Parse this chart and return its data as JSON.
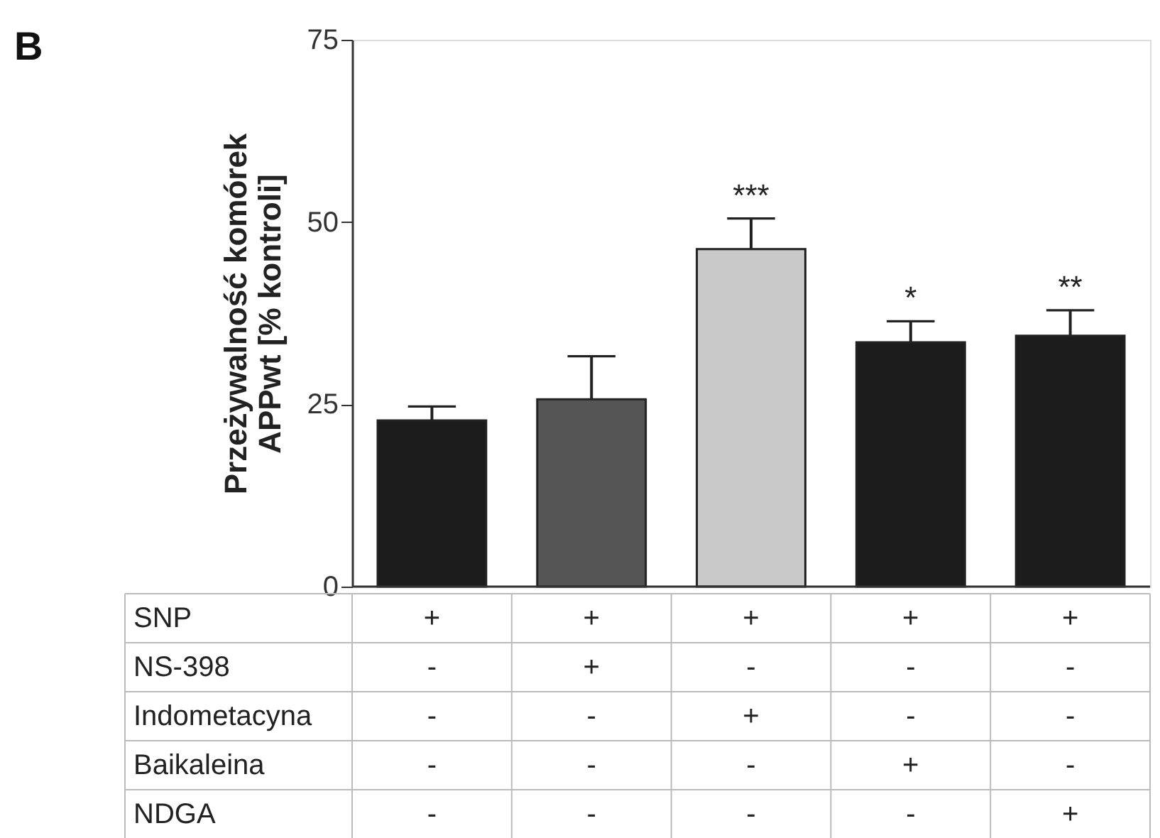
{
  "chart_data": {
    "type": "bar",
    "title": "B",
    "ylabel": "Przeżywalność komórek\nAPPwt [% kontroli]",
    "categories": [
      null,
      null,
      null,
      null,
      null
    ],
    "values": [
      22.8,
      25.7,
      46.3,
      33.5,
      34.4
    ],
    "colors": [
      "#1c1c1c",
      "#555555",
      "#c9c9c9",
      "#1c1c1c",
      "#1c1c1c"
    ],
    "errors": [
      [
        22.8,
        24.7
      ],
      [
        25.7,
        31.6
      ],
      [
        46.3,
        50.5
      ],
      [
        33.5,
        36.4
      ],
      [
        34.4,
        37.9
      ]
    ],
    "value_labels": [
      null,
      null,
      "***",
      "*",
      "**"
    ],
    "ylim": [
      0,
      75
    ],
    "yticks": [
      0,
      25,
      50,
      75
    ],
    "grid": false,
    "annotations": [
      "SNP",
      "+",
      "+",
      "+",
      "+",
      "+",
      "NS-398",
      "-",
      "+",
      "-",
      "-",
      "-",
      "Indometacyna",
      "-",
      "-",
      "+",
      "-",
      "-",
      "Baikaleina",
      "-",
      "-",
      "-",
      "+",
      "-",
      "NDGA",
      "-",
      "-",
      "-",
      "-",
      "+"
    ]
  }
}
